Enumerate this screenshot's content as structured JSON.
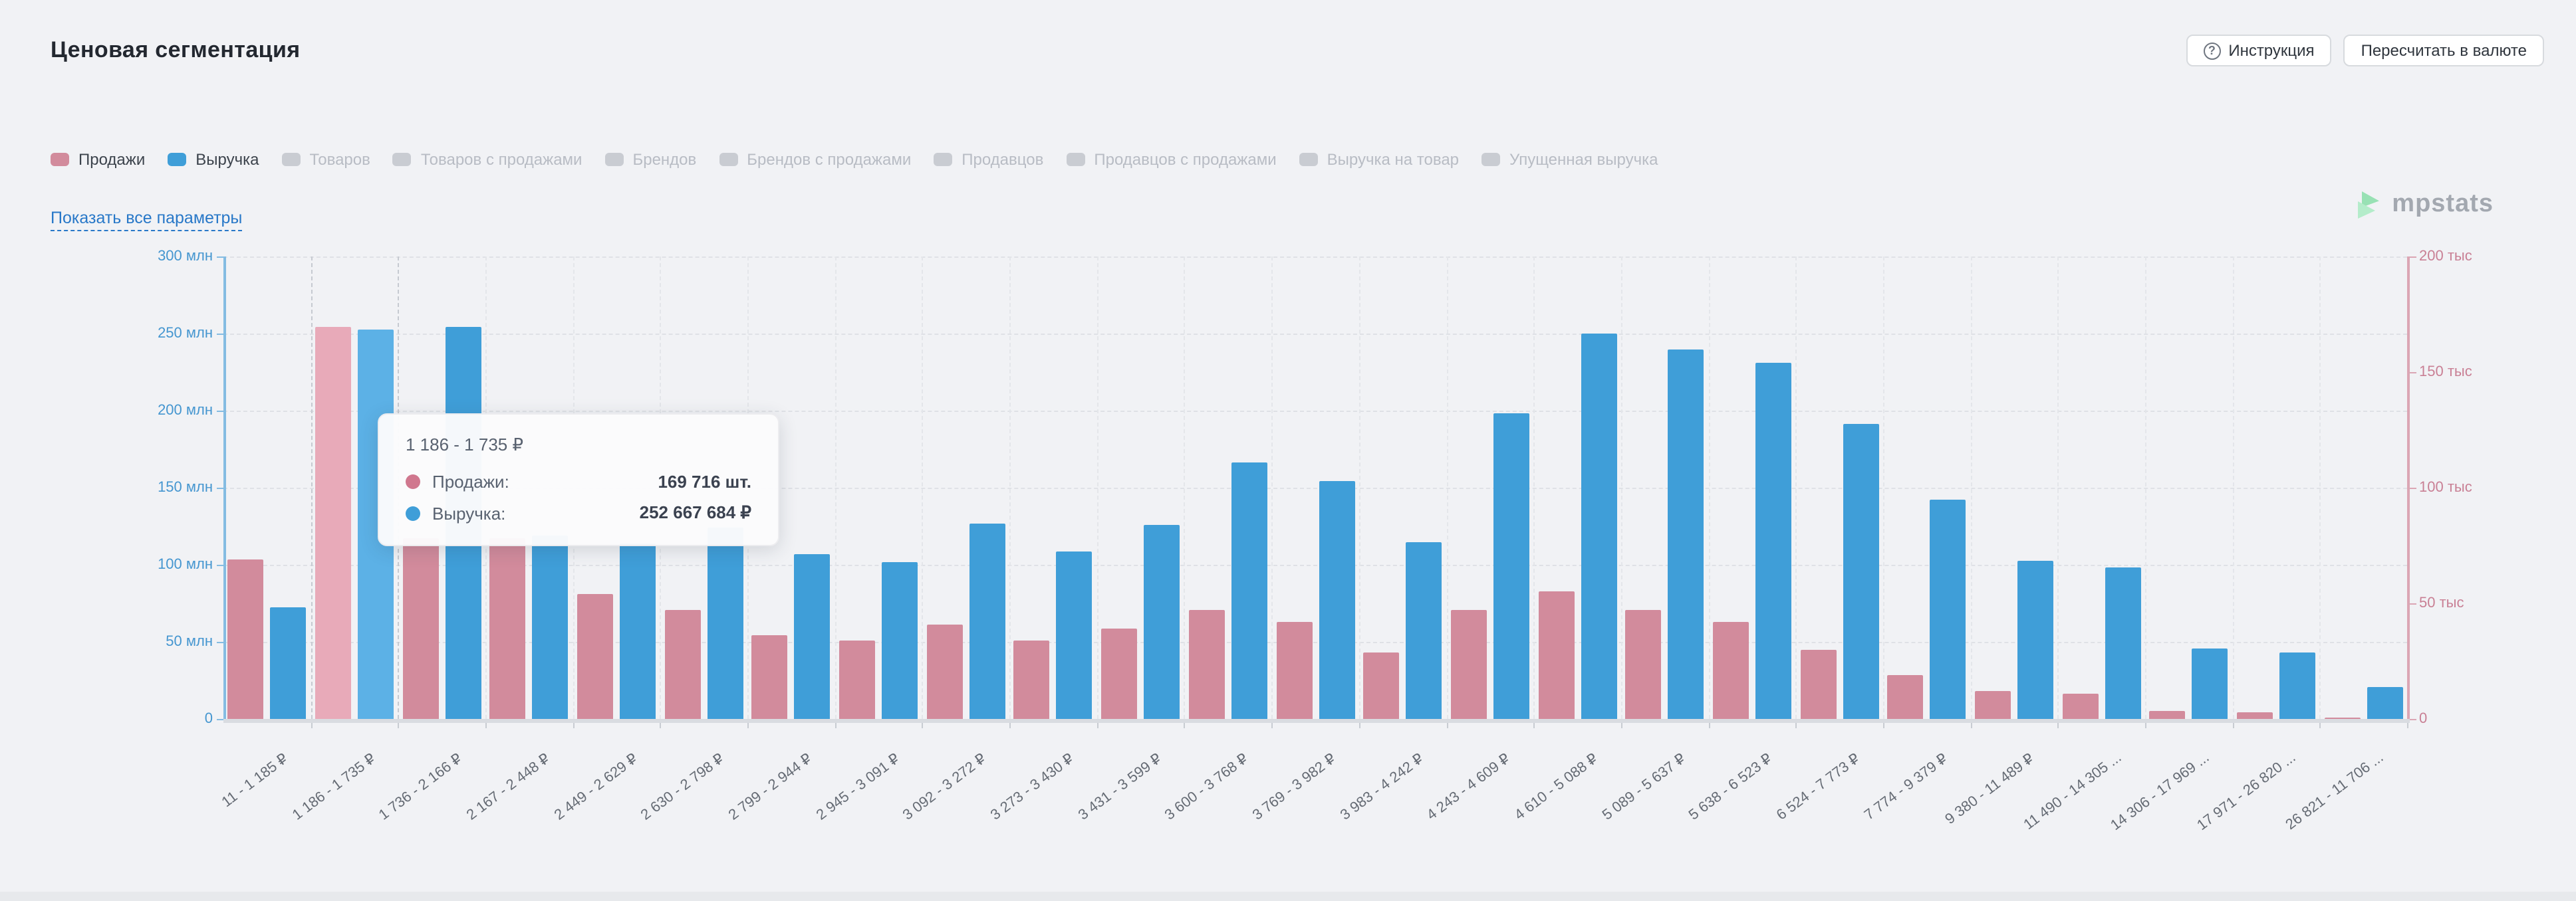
{
  "header": {
    "title": "Ценовая сегментация",
    "instruction_button": "Инструкция",
    "recalc_button": "Пересчитать в валюте"
  },
  "legend": {
    "items": [
      {
        "label": "Продажи",
        "color": "#d28b9c",
        "enabled": true
      },
      {
        "label": "Выручка",
        "color": "#3f9ed8",
        "enabled": true
      },
      {
        "label": "Товаров",
        "color": "#c9ccd2",
        "enabled": false
      },
      {
        "label": "Товаров с продажами",
        "color": "#c9ccd2",
        "enabled": false
      },
      {
        "label": "Брендов",
        "color": "#c9ccd2",
        "enabled": false
      },
      {
        "label": "Брендов с продажами",
        "color": "#c9ccd2",
        "enabled": false
      },
      {
        "label": "Продавцов",
        "color": "#c9ccd2",
        "enabled": false
      },
      {
        "label": "Продавцов с продажами",
        "color": "#c9ccd2",
        "enabled": false
      },
      {
        "label": "Выручка на товар",
        "color": "#c9ccd2",
        "enabled": false
      },
      {
        "label": "Упущенная выручка",
        "color": "#c9ccd2",
        "enabled": false
      }
    ]
  },
  "show_all_link": "Показать все параметры",
  "watermark": {
    "text": "mpstats",
    "icon_color_top": "#8fe0ae",
    "icon_color_bottom": "#aeecc6"
  },
  "tooltip": {
    "title": "1 186 - 1 735 ₽",
    "rows": [
      {
        "label": "Продажи:",
        "value": "169 716 шт.",
        "color": "#d0778e"
      },
      {
        "label": "Выручка:",
        "value": "252 667 684 ₽",
        "color": "#3f9ed8"
      }
    ]
  },
  "chart_data": {
    "type": "bar",
    "title": "Ценовая сегментация",
    "categories": [
      "11 - 1 185 ₽",
      "1 186 - 1 735 ₽",
      "1 736 - 2 166 ₽",
      "2 167 - 2 448 ₽",
      "2 449 - 2 629 ₽",
      "2 630 - 2 798 ₽",
      "2 799 - 2 944 ₽",
      "2 945 - 3 091 ₽",
      "3 092 - 3 272 ₽",
      "3 273 - 3 430 ₽",
      "3 431 - 3 599 ₽",
      "3 600 - 3 768 ₽",
      "3 769 - 3 982 ₽",
      "3 983 - 4 242 ₽",
      "4 243 - 4 609 ₽",
      "4 610 - 5 088 ₽",
      "5 089 - 5 637 ₽",
      "5 638 - 6 523 ₽",
      "6 524 - 7 773 ₽",
      "7 774 - 9 379 ₽",
      "9 380 - 11 489 ₽",
      "11 490 - 14 305 ...",
      "14 306 - 17 969 ...",
      "17 971 - 26 820 ...",
      "26 821 - 11 706 ..."
    ],
    "series": [
      {
        "name": "Продажи",
        "axis": "right",
        "unit": "тыс шт.",
        "color": "#d28b9c",
        "highlight_color": "#e8aab9",
        "values": [
          69,
          169.716,
          78,
          78,
          54,
          47,
          36,
          34,
          41,
          34,
          39,
          47,
          42,
          29,
          47,
          55,
          47,
          42,
          30,
          19,
          12,
          11,
          3.3,
          2.7,
          0.7
        ]
      },
      {
        "name": "Выручка",
        "axis": "left",
        "unit": "млн ₽",
        "color": "#3f9ed8",
        "highlight_color": "#5cb1e6",
        "values": [
          72,
          252.668,
          254,
          119,
          114,
          124,
          107,
          102,
          127,
          109,
          126,
          166,
          154,
          115,
          198,
          250,
          240,
          231,
          191,
          142,
          103,
          98,
          46,
          43,
          21
        ]
      }
    ],
    "left_axis": {
      "ticks": [
        "0",
        "50 млн",
        "100 млн",
        "150 млн",
        "200 млн",
        "250 млн",
        "300 млн"
      ],
      "max": 300,
      "color": "#4596d0"
    },
    "right_axis": {
      "ticks": [
        "0",
        "50 тыс",
        "100 тыс",
        "150 тыс",
        "200 тыс"
      ],
      "max": 200,
      "color": "#c98095"
    },
    "highlighted_index": 1,
    "grid": true,
    "legend_position": "top"
  }
}
